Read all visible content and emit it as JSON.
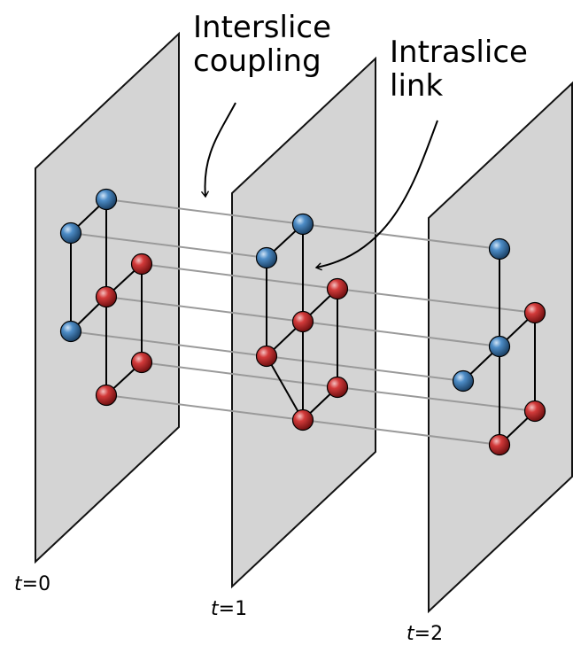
{
  "labels": {
    "interslice": "Interslice\ncoupling",
    "intraslice": "Intraslice\nlink",
    "slices": [
      {
        "var": "t",
        "rest": "=0"
      },
      {
        "var": "t",
        "rest": "=1"
      },
      {
        "var": "t",
        "rest": "=2"
      }
    ]
  },
  "colors": {
    "plane_fill": "#d4d4d4",
    "plane_stroke": "#111111",
    "coupling": "#9a9a9a",
    "edge": "#000000",
    "node_blue": "#2f6ea3",
    "node_red": "#c8262a"
  }
}
